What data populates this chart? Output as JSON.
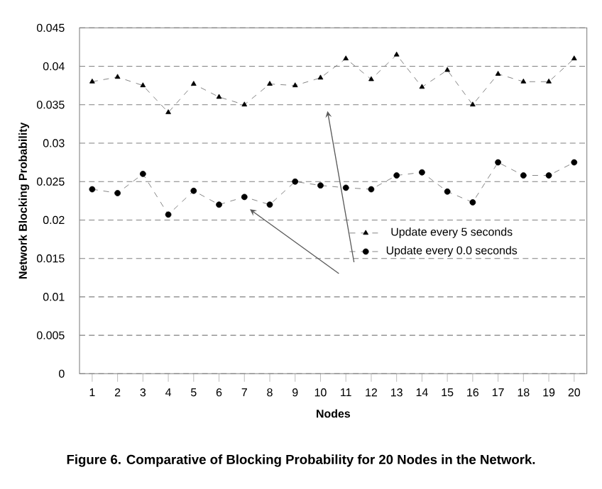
{
  "chart_data": {
    "type": "line",
    "categories": [
      "1",
      "2",
      "3",
      "4",
      "5",
      "6",
      "7",
      "8",
      "9",
      "10",
      "11",
      "12",
      "13",
      "14",
      "15",
      "16",
      "17",
      "18",
      "19",
      "20"
    ],
    "series": [
      {
        "name": "Update every 5 seconds",
        "color": "#000000",
        "marker": "triangle",
        "values": [
          0.038,
          0.0386,
          0.0375,
          0.034,
          0.0377,
          0.036,
          0.035,
          0.0377,
          0.0375,
          0.0385,
          0.041,
          0.0383,
          0.0415,
          0.0373,
          0.0395,
          0.035,
          0.039,
          0.038,
          0.038,
          0.041
        ]
      },
      {
        "name": "Update every 0.0 seconds",
        "color": "#000000",
        "marker": "circle",
        "values": [
          0.024,
          0.0235,
          0.026,
          0.0207,
          0.0238,
          0.022,
          0.023,
          0.022,
          0.025,
          0.0245,
          0.0242,
          0.024,
          0.0258,
          0.0262,
          0.0237,
          0.0223,
          0.0275,
          0.0258,
          0.0258,
          0.0275
        ]
      }
    ],
    "line_style": "dashed",
    "xlabel": "Nodes",
    "ylabel": "Network Blocking Probability",
    "ylim": [
      0,
      0.045
    ],
    "yticks": [
      0,
      0.005,
      0.01,
      0.015,
      0.02,
      0.025,
      0.03,
      0.035,
      0.04,
      0.045
    ],
    "grid": "y",
    "legend": "right",
    "annotations": [
      "Figure 6. Comparative of Blocking Probability for 20 Nodes in the Network."
    ]
  }
}
